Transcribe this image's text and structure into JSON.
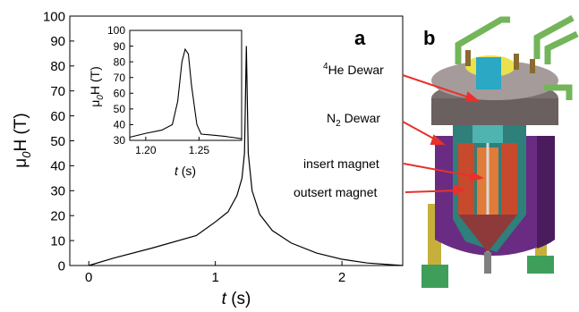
{
  "panel_a": {
    "letter": "a",
    "ylabel": {
      "main": "μ",
      "sub": "0",
      "tail": "H (T)"
    },
    "xlabel": {
      "main": "t",
      "tail": " (s)"
    }
  },
  "inset": {
    "ylabel": {
      "main": "μ",
      "sub": "0",
      "tail": "H (T)"
    },
    "xlabel": {
      "main": "t",
      "tail": " (s)"
    }
  },
  "panel_b": {
    "letter": "b",
    "callouts": [
      {
        "id": "he",
        "sup": "4",
        "text": "He Dewar"
      },
      {
        "id": "n2",
        "text": "N",
        "sub": "2",
        "tail": " Dewar"
      },
      {
        "id": "insert",
        "text": "insert magnet"
      },
      {
        "id": "outsert",
        "text": "outsert magnet"
      }
    ],
    "colors": {
      "arrow": "#e8312a",
      "dewar": "#6a2c82",
      "cap": "#e9e24c",
      "tube": "#74b45a"
    }
  },
  "chart_data": [
    {
      "type": "line",
      "panel": "a",
      "xlabel": "t (s)",
      "ylabel": "μ0H (T)",
      "xlim": [
        -0.15,
        2.48
      ],
      "ylim": [
        0,
        100
      ],
      "xticks": [
        0,
        1,
        2
      ],
      "yticks": [
        0,
        10,
        20,
        30,
        40,
        50,
        60,
        70,
        80,
        90,
        100
      ],
      "series": [
        {
          "x": [
            0,
            0.2,
            0.5,
            0.85,
            1.0,
            1.1,
            1.17,
            1.21,
            1.23,
            1.245,
            1.26,
            1.29,
            1.35,
            1.45,
            1.6,
            1.8,
            2.0,
            2.2,
            2.48
          ],
          "y": [
            0,
            3,
            7,
            12,
            17.5,
            21.5,
            28,
            35,
            45,
            88,
            45,
            30,
            20.5,
            14,
            9,
            5,
            2.5,
            1,
            0
          ]
        }
      ]
    },
    {
      "type": "line",
      "panel": "inset",
      "xlabel": "t (s)",
      "ylabel": "μ0H (T)",
      "xlim": [
        1.185,
        1.29
      ],
      "ylim": [
        30,
        100
      ],
      "xticks": [
        1.2,
        1.25
      ],
      "xtick_labels": [
        "1.20",
        "1.25"
      ],
      "yticks": [
        30,
        40,
        50,
        60,
        70,
        80,
        90,
        100
      ],
      "series": [
        {
          "x": [
            1.185,
            1.2,
            1.215,
            1.225,
            1.23,
            1.234,
            1.237,
            1.24,
            1.243,
            1.248,
            1.252,
            1.26,
            1.275,
            1.29
          ],
          "y": [
            32,
            34.5,
            36.5,
            40,
            55,
            80,
            88,
            85,
            65,
            40,
            34,
            33.5,
            32.5,
            31
          ]
        }
      ]
    }
  ]
}
